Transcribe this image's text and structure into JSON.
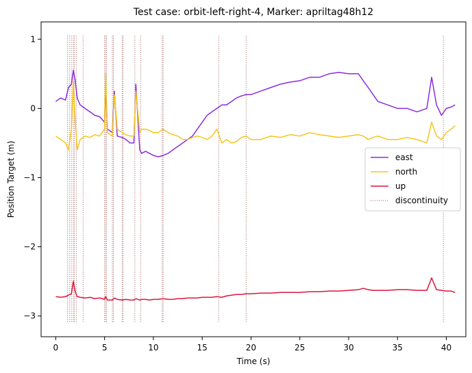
{
  "chart_data": {
    "type": "line",
    "title": "Test case: orbit-left-right-4, Marker: apriltag48h12",
    "xlabel": "Time (s)",
    "ylabel": "Position Target (m)",
    "xlim": [
      -1.5,
      42.0
    ],
    "ylim": [
      -3.3,
      1.25
    ],
    "xticks": [
      0,
      5,
      10,
      15,
      20,
      25,
      30,
      35,
      40
    ],
    "xtick_labels": [
      "0",
      "5",
      "10",
      "15",
      "20",
      "25",
      "30",
      "35",
      "40"
    ],
    "yticks": [
      1,
      0,
      -1,
      -2,
      -3
    ],
    "ytick_labels": [
      "1",
      "0",
      "−1",
      "−2",
      "−3"
    ],
    "grid": false,
    "legend_position": "center-right",
    "series": [
      {
        "name": "east",
        "color": "#8a2be2",
        "x": [
          0,
          0.5,
          1.0,
          1.3,
          1.6,
          1.8,
          2.0,
          2.2,
          2.5,
          3.0,
          3.5,
          4.0,
          4.5,
          5.0,
          5.1,
          5.3,
          5.8,
          6.0,
          6.3,
          6.8,
          7.2,
          7.6,
          8.0,
          8.2,
          8.6,
          8.8,
          9.2,
          9.6,
          10.0,
          10.5,
          11.0,
          11.5,
          12.0,
          12.5,
          13.0,
          13.5,
          14.0,
          14.5,
          15.0,
          15.5,
          16.0,
          16.5,
          17.0,
          17.5,
          18.0,
          18.5,
          19.0,
          19.5,
          20.0,
          21.0,
          22.0,
          23.0,
          24.0,
          25.0,
          26.0,
          27.0,
          28.0,
          29.0,
          30.0,
          31.0,
          31.5,
          32.0,
          32.5,
          33.0,
          34.0,
          35.0,
          36.0,
          37.0,
          38.0,
          38.5,
          39.0,
          39.5,
          40.0,
          40.5,
          40.9
        ],
        "y": [
          0.1,
          0.15,
          0.12,
          0.3,
          0.35,
          0.55,
          0.4,
          0.15,
          0.05,
          0.0,
          -0.05,
          -0.1,
          -0.12,
          -0.2,
          0.3,
          -0.3,
          -0.35,
          0.25,
          -0.4,
          -0.42,
          -0.45,
          -0.5,
          -0.5,
          0.35,
          -0.6,
          -0.65,
          -0.62,
          -0.65,
          -0.68,
          -0.7,
          -0.68,
          -0.65,
          -0.6,
          -0.55,
          -0.5,
          -0.45,
          -0.4,
          -0.3,
          -0.2,
          -0.1,
          -0.05,
          0.0,
          0.05,
          0.05,
          0.1,
          0.15,
          0.18,
          0.2,
          0.2,
          0.25,
          0.3,
          0.35,
          0.38,
          0.4,
          0.45,
          0.45,
          0.5,
          0.52,
          0.5,
          0.5,
          0.4,
          0.3,
          0.2,
          0.1,
          0.05,
          0.0,
          0.0,
          -0.05,
          0.0,
          0.45,
          0.05,
          -0.1,
          0.0,
          0.02,
          0.05
        ]
      },
      {
        "name": "north",
        "color": "#f5c518",
        "x": [
          0,
          0.5,
          1.0,
          1.3,
          1.6,
          1.8,
          2.0,
          2.2,
          2.5,
          3.0,
          3.5,
          4.0,
          4.5,
          5.0,
          5.1,
          5.3,
          5.8,
          6.0,
          6.3,
          6.8,
          7.2,
          7.6,
          8.0,
          8.2,
          8.6,
          8.8,
          9.2,
          9.6,
          10.0,
          10.5,
          11.0,
          11.5,
          12.0,
          12.5,
          13.0,
          13.5,
          14.0,
          14.5,
          15.0,
          15.5,
          16.0,
          16.5,
          17.0,
          17.5,
          18.0,
          18.5,
          19.0,
          19.5,
          20.0,
          21.0,
          22.0,
          23.0,
          24.0,
          25.0,
          26.0,
          27.0,
          28.0,
          29.0,
          30.0,
          31.0,
          31.5,
          32.0,
          32.5,
          33.0,
          34.0,
          35.0,
          36.0,
          37.0,
          38.0,
          38.5,
          39.0,
          39.5,
          40.0,
          40.5,
          40.9
        ],
        "y": [
          -0.4,
          -0.45,
          -0.5,
          -0.6,
          -0.3,
          0.4,
          -0.2,
          -0.6,
          -0.45,
          -0.4,
          -0.42,
          -0.38,
          -0.4,
          -0.3,
          0.5,
          -0.35,
          -0.4,
          0.2,
          -0.3,
          -0.35,
          -0.38,
          -0.4,
          -0.4,
          0.25,
          -0.35,
          -0.3,
          -0.3,
          -0.32,
          -0.35,
          -0.35,
          -0.3,
          -0.35,
          -0.38,
          -0.4,
          -0.45,
          -0.45,
          -0.42,
          -0.4,
          -0.42,
          -0.45,
          -0.4,
          -0.3,
          -0.5,
          -0.45,
          -0.5,
          -0.48,
          -0.42,
          -0.4,
          -0.45,
          -0.45,
          -0.4,
          -0.42,
          -0.38,
          -0.4,
          -0.35,
          -0.38,
          -0.4,
          -0.42,
          -0.4,
          -0.38,
          -0.4,
          -0.45,
          -0.42,
          -0.4,
          -0.45,
          -0.45,
          -0.42,
          -0.45,
          -0.5,
          -0.2,
          -0.4,
          -0.45,
          -0.35,
          -0.3,
          -0.25
        ]
      },
      {
        "name": "up",
        "color": "#dc143c",
        "x": [
          0,
          0.5,
          1.0,
          1.3,
          1.6,
          1.8,
          2.0,
          2.2,
          2.5,
          3.0,
          3.5,
          4.0,
          4.5,
          5.0,
          5.1,
          5.3,
          5.8,
          6.0,
          6.3,
          6.8,
          7.2,
          7.6,
          8.0,
          8.2,
          8.6,
          8.8,
          9.2,
          9.6,
          10.0,
          10.5,
          11.0,
          11.5,
          12.0,
          12.5,
          13.0,
          13.5,
          14.0,
          14.5,
          15.0,
          15.5,
          16.0,
          16.5,
          17.0,
          17.5,
          18.0,
          18.5,
          19.0,
          19.5,
          20.0,
          21.0,
          22.0,
          23.0,
          24.0,
          25.0,
          26.0,
          27.0,
          28.0,
          29.0,
          30.0,
          31.0,
          31.5,
          32.0,
          32.5,
          33.0,
          34.0,
          35.0,
          36.0,
          37.0,
          38.0,
          38.5,
          39.0,
          39.5,
          40.0,
          40.5,
          40.9
        ],
        "y": [
          -2.72,
          -2.73,
          -2.72,
          -2.7,
          -2.68,
          -2.5,
          -2.65,
          -2.72,
          -2.73,
          -2.74,
          -2.73,
          -2.75,
          -2.74,
          -2.76,
          -2.72,
          -2.77,
          -2.77,
          -2.74,
          -2.76,
          -2.77,
          -2.76,
          -2.77,
          -2.77,
          -2.75,
          -2.77,
          -2.76,
          -2.76,
          -2.77,
          -2.76,
          -2.76,
          -2.75,
          -2.76,
          -2.76,
          -2.75,
          -2.75,
          -2.74,
          -2.74,
          -2.74,
          -2.73,
          -2.73,
          -2.73,
          -2.72,
          -2.73,
          -2.71,
          -2.7,
          -2.69,
          -2.69,
          -2.68,
          -2.68,
          -2.67,
          -2.67,
          -2.66,
          -2.66,
          -2.66,
          -2.65,
          -2.65,
          -2.64,
          -2.64,
          -2.63,
          -2.62,
          -2.6,
          -2.62,
          -2.63,
          -2.63,
          -2.63,
          -2.62,
          -2.62,
          -2.63,
          -2.63,
          -2.45,
          -2.62,
          -2.63,
          -2.64,
          -2.64,
          -2.66
        ]
      }
    ],
    "discontinuity": {
      "name": "discontinuity",
      "color": "#a05a5a",
      "x": [
        1.2,
        1.4,
        1.6,
        1.8,
        1.9,
        2.1,
        2.8,
        5.0,
        5.1,
        5.2,
        5.8,
        5.9,
        6.8,
        6.9,
        8.1,
        8.7,
        10.9,
        11.0,
        16.7,
        19.5,
        39.7
      ],
      "y_range": [
        -3.1,
        1.05
      ]
    }
  }
}
